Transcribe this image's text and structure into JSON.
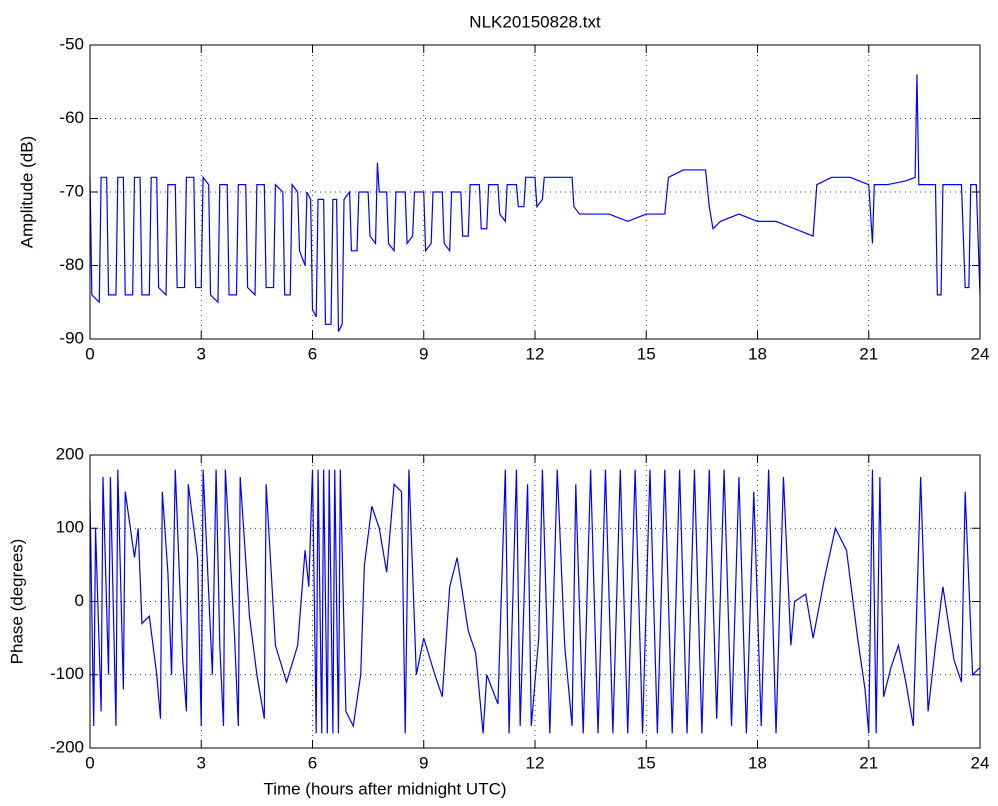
{
  "chart_data": [
    {
      "type": "line",
      "title": "NLK20150828.txt",
      "ylabel": "Amplitude (dB)",
      "color": "#0000ff",
      "grid": true,
      "xlim": [
        0,
        24
      ],
      "xticks": [
        0,
        3,
        6,
        9,
        12,
        15,
        18,
        21,
        24
      ],
      "ylim": [
        -90,
        -50
      ],
      "yticks": [
        -90,
        -80,
        -70,
        -60,
        -50
      ],
      "x": [
        0,
        0.05,
        0.25,
        0.3,
        0.45,
        0.5,
        0.7,
        0.75,
        0.9,
        0.95,
        1.15,
        1.2,
        1.35,
        1.4,
        1.6,
        1.65,
        1.8,
        1.85,
        2.05,
        2.1,
        2.3,
        2.35,
        2.55,
        2.6,
        2.8,
        2.85,
        3.0,
        3.05,
        3.2,
        3.25,
        3.45,
        3.5,
        3.7,
        3.75,
        3.95,
        4.0,
        4.2,
        4.25,
        4.45,
        4.5,
        4.7,
        4.75,
        4.95,
        5.0,
        5.2,
        5.25,
        5.4,
        5.45,
        5.6,
        5.65,
        5.8,
        5.85,
        5.95,
        6.0,
        6.1,
        6.15,
        6.3,
        6.35,
        6.5,
        6.55,
        6.65,
        6.7,
        6.8,
        6.85,
        7.0,
        7.05,
        7.2,
        7.25,
        7.5,
        7.55,
        7.7,
        7.75,
        7.8,
        8.0,
        8.05,
        8.2,
        8.25,
        8.5,
        8.55,
        8.7,
        8.75,
        9.0,
        9.05,
        9.2,
        9.25,
        9.5,
        9.55,
        9.7,
        9.75,
        10.0,
        10.05,
        10.2,
        10.25,
        10.5,
        10.55,
        10.7,
        10.75,
        11.0,
        11.05,
        11.2,
        11.25,
        11.5,
        11.55,
        11.7,
        11.75,
        12.0,
        12.05,
        12.2,
        12.25,
        12.6,
        13.0,
        13.05,
        13.2,
        14.0,
        14.5,
        15.0,
        15.5,
        15.6,
        16.0,
        16.6,
        16.7,
        16.8,
        17.0,
        17.5,
        18.0,
        18.5,
        19.0,
        19.5,
        19.6,
        20.0,
        20.5,
        21.0,
        21.1,
        21.15,
        21.5,
        22.0,
        22.25,
        22.3,
        22.35,
        22.8,
        22.85,
        22.95,
        23.0,
        23.5,
        23.6,
        23.7,
        23.75,
        23.9,
        24.0
      ],
      "values": [
        -68,
        -84,
        -85,
        -68,
        -68,
        -84,
        -84,
        -68,
        -68,
        -84,
        -84,
        -68,
        -68,
        -84,
        -84,
        -68,
        -68,
        -83,
        -84,
        -69,
        -69,
        -83,
        -83,
        -68,
        -68,
        -83,
        -83,
        -68,
        -69,
        -84,
        -85,
        -69,
        -69,
        -84,
        -84,
        -69,
        -69,
        -83,
        -84,
        -69,
        -69,
        -83,
        -83,
        -69,
        -70,
        -84,
        -84,
        -69,
        -70,
        -78,
        -80,
        -70,
        -71,
        -86,
        -87,
        -71,
        -71,
        -88,
        -88,
        -71,
        -71,
        -89,
        -88,
        -71,
        -70,
        -78,
        -78,
        -70,
        -70,
        -76,
        -77,
        -66,
        -70,
        -70,
        -77,
        -78,
        -70,
        -70,
        -77,
        -76,
        -70,
        -70,
        -78,
        -77,
        -70,
        -70,
        -77,
        -78,
        -70,
        -70,
        -76,
        -76,
        -69,
        -69,
        -75,
        -75,
        -69,
        -69,
        -73,
        -74,
        -69,
        -69,
        -72,
        -72,
        -68,
        -68,
        -72,
        -71,
        -68,
        -68,
        -68,
        -72,
        -73,
        -73,
        -74,
        -73,
        -73,
        -68,
        -67,
        -67,
        -72,
        -75,
        -74,
        -73,
        -74,
        -74,
        -75,
        -76,
        -69,
        -68,
        -68,
        -69,
        -77,
        -69,
        -69,
        -68.5,
        -68,
        -54,
        -69,
        -69,
        -84,
        -84,
        -69,
        -69,
        -83,
        -83,
        -69,
        -69,
        -84
      ]
    },
    {
      "type": "line",
      "ylabel": "Phase (degrees)",
      "xlabel": "Time (hours after midnight UTC)",
      "color": "#0000ff",
      "grid": true,
      "xlim": [
        0,
        24
      ],
      "xticks": [
        0,
        3,
        6,
        9,
        12,
        15,
        18,
        21,
        24
      ],
      "ylim": [
        -200,
        200
      ],
      "yticks": [
        -200,
        -100,
        0,
        100,
        200
      ],
      "x": [
        0,
        0.1,
        0.15,
        0.3,
        0.35,
        0.5,
        0.55,
        0.7,
        0.75,
        0.9,
        0.95,
        1.2,
        1.3,
        1.4,
        1.6,
        1.8,
        1.9,
        1.95,
        2.1,
        2.2,
        2.3,
        2.5,
        2.6,
        2.65,
        2.9,
        3.0,
        3.05,
        3.3,
        3.4,
        3.5,
        3.6,
        3.65,
        3.9,
        4.0,
        4.05,
        4.3,
        4.5,
        4.7,
        4.75,
        5.0,
        5.3,
        5.6,
        5.8,
        5.9,
        6.0,
        6.1,
        6.15,
        6.25,
        6.3,
        6.4,
        6.45,
        6.55,
        6.6,
        6.7,
        6.75,
        6.9,
        7.1,
        7.3,
        7.4,
        7.6,
        7.8,
        8.0,
        8.2,
        8.4,
        8.5,
        8.6,
        8.8,
        9.0,
        9.3,
        9.5,
        9.7,
        9.9,
        10.2,
        10.4,
        10.6,
        10.7,
        11.0,
        11.2,
        11.3,
        11.5,
        11.6,
        11.8,
        11.9,
        12.1,
        12.2,
        12.4,
        12.6,
        12.8,
        13.0,
        13.1,
        13.3,
        13.5,
        13.7,
        13.9,
        14.1,
        14.3,
        14.5,
        14.7,
        14.9,
        15.1,
        15.3,
        15.5,
        15.7,
        15.9,
        16.1,
        16.3,
        16.5,
        16.7,
        16.9,
        17.1,
        17.3,
        17.5,
        17.7,
        17.9,
        18.1,
        18.3,
        18.5,
        18.7,
        18.9,
        19.0,
        19.3,
        19.5,
        19.8,
        20.1,
        20.4,
        20.7,
        20.9,
        21.0,
        21.1,
        21.2,
        21.3,
        21.4,
        21.6,
        21.8,
        22.0,
        22.2,
        22.4,
        22.6,
        22.8,
        23.0,
        23.3,
        23.5,
        23.6,
        23.8,
        24.0
      ],
      "values": [
        140,
        -170,
        100,
        -150,
        170,
        -100,
        170,
        -170,
        180,
        -120,
        150,
        60,
        100,
        -30,
        -20,
        -100,
        -160,
        150,
        40,
        -100,
        180,
        -80,
        -150,
        160,
        60,
        -170,
        180,
        -100,
        180,
        -60,
        -170,
        180,
        -50,
        -170,
        170,
        -20,
        -100,
        -160,
        160,
        -60,
        -110,
        -60,
        70,
        20,
        180,
        -180,
        180,
        -180,
        180,
        -180,
        180,
        -180,
        180,
        -180,
        180,
        -150,
        -170,
        -100,
        50,
        130,
        100,
        40,
        160,
        150,
        -180,
        180,
        -100,
        -50,
        -100,
        -130,
        20,
        60,
        -40,
        -70,
        -180,
        -100,
        -140,
        180,
        -180,
        180,
        -170,
        160,
        -170,
        -50,
        180,
        -180,
        180,
        -60,
        -170,
        160,
        -180,
        180,
        -180,
        180,
        -180,
        180,
        -180,
        180,
        -180,
        180,
        -180,
        180,
        -180,
        180,
        -180,
        180,
        -180,
        180,
        -160,
        180,
        -170,
        170,
        -180,
        150,
        -170,
        180,
        -180,
        170,
        -60,
        0,
        10,
        -50,
        30,
        100,
        70,
        -50,
        -120,
        -180,
        180,
        -180,
        170,
        -130,
        -90,
        -60,
        -110,
        -170,
        170,
        -150,
        -60,
        20,
        -80,
        -110,
        150,
        -100,
        -90
      ]
    }
  ]
}
